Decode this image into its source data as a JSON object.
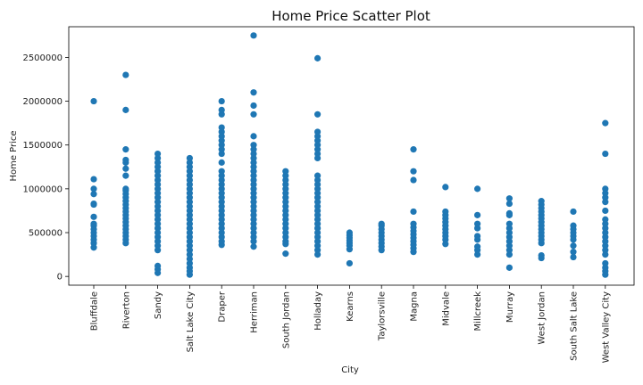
{
  "chart_data": {
    "type": "scatter",
    "title": "Home Price Scatter Plot",
    "xlabel": "City",
    "ylabel": "Home Price",
    "ylim": [
      -100000,
      2850000
    ],
    "yticks": [
      0,
      500000,
      1000000,
      1500000,
      2000000,
      2500000
    ],
    "ytick_labels": [
      "0",
      "500000",
      "1000000",
      "1500000",
      "2000000",
      "2500000"
    ],
    "grid": false,
    "legend": "none",
    "marker_color": "#1f77b4",
    "categories": [
      "Bluffdale",
      "Riverton",
      "Sandy",
      "Salt Lake City",
      "Draper",
      "Herriman",
      "South Jordan",
      "Holladay",
      "Kearns",
      "Taylorsville",
      "Magna",
      "Midvale",
      "Millcreek",
      "Murray",
      "West Jordan",
      "South Salt Lake",
      "West Valley City"
    ],
    "points": {
      "Bluffdale": [
        330000,
        380000,
        420000,
        460000,
        500000,
        540000,
        580000,
        600000,
        680000,
        820000,
        830000,
        940000,
        1000000,
        1110000,
        2000000
      ],
      "Riverton": [
        380000,
        420000,
        460000,
        500000,
        540000,
        580000,
        620000,
        660000,
        700000,
        740000,
        780000,
        820000,
        860000,
        900000,
        940000,
        980000,
        1000000,
        1150000,
        1230000,
        1300000,
        1330000,
        1450000,
        1900000,
        2300000
      ],
      "Sandy": [
        40000,
        80000,
        120000,
        300000,
        350000,
        400000,
        450000,
        500000,
        550000,
        600000,
        650000,
        700000,
        750000,
        800000,
        850000,
        900000,
        950000,
        1000000,
        1050000,
        1100000,
        1150000,
        1200000,
        1250000,
        1300000,
        1350000,
        1400000
      ],
      "Salt Lake City": [
        20000,
        60000,
        100000,
        150000,
        200000,
        250000,
        300000,
        350000,
        400000,
        450000,
        500000,
        550000,
        600000,
        650000,
        700000,
        750000,
        800000,
        850000,
        900000,
        950000,
        1000000,
        1050000,
        1100000,
        1150000,
        1200000,
        1250000,
        1300000,
        1350000
      ],
      "Draper": [
        360000,
        400000,
        450000,
        500000,
        550000,
        600000,
        650000,
        700000,
        750000,
        800000,
        850000,
        900000,
        950000,
        1000000,
        1050000,
        1100000,
        1150000,
        1200000,
        1300000,
        1400000,
        1450000,
        1500000,
        1550000,
        1600000,
        1650000,
        1700000,
        1850000,
        1900000,
        2000000
      ],
      "Herriman": [
        340000,
        400000,
        450000,
        500000,
        550000,
        600000,
        650000,
        700000,
        750000,
        800000,
        850000,
        900000,
        950000,
        1000000,
        1050000,
        1100000,
        1150000,
        1200000,
        1250000,
        1300000,
        1350000,
        1400000,
        1450000,
        1500000,
        1600000,
        1850000,
        1950000,
        2100000,
        2750000
      ],
      "South Jordan": [
        260000,
        370000,
        400000,
        450000,
        500000,
        550000,
        600000,
        650000,
        700000,
        750000,
        800000,
        850000,
        900000,
        950000,
        1000000,
        1050000,
        1100000,
        1150000,
        1200000
      ],
      "Holladay": [
        250000,
        300000,
        350000,
        400000,
        450000,
        500000,
        550000,
        600000,
        650000,
        700000,
        750000,
        800000,
        850000,
        900000,
        950000,
        1000000,
        1050000,
        1100000,
        1150000,
        1350000,
        1400000,
        1450000,
        1500000,
        1550000,
        1600000,
        1650000,
        1850000,
        2490000
      ],
      "Kearns": [
        150000,
        310000,
        350000,
        380000,
        410000,
        440000,
        470000,
        500000
      ],
      "Taylorsville": [
        300000,
        340000,
        380000,
        420000,
        460000,
        500000,
        540000,
        580000,
        600000
      ],
      "Magna": [
        280000,
        320000,
        360000,
        400000,
        440000,
        480000,
        520000,
        560000,
        600000,
        740000,
        1100000,
        1200000,
        1450000
      ],
      "Midvale": [
        370000,
        420000,
        460000,
        500000,
        540000,
        580000,
        620000,
        660000,
        700000,
        740000,
        1020000
      ],
      "Millcreek": [
        250000,
        300000,
        340000,
        420000,
        460000,
        550000,
        600000,
        700000,
        1000000
      ],
      "Murray": [
        100000,
        250000,
        300000,
        350000,
        400000,
        450000,
        500000,
        550000,
        600000,
        700000,
        720000,
        830000,
        890000
      ],
      "West Jordan": [
        210000,
        240000,
        380000,
        420000,
        460000,
        500000,
        540000,
        580000,
        620000,
        660000,
        700000,
        740000,
        780000,
        820000,
        860000
      ],
      "South Salt Lake": [
        220000,
        280000,
        350000,
        420000,
        460000,
        500000,
        540000,
        580000,
        740000
      ],
      "West Valley City": [
        20000,
        60000,
        100000,
        150000,
        250000,
        300000,
        350000,
        400000,
        450000,
        500000,
        550000,
        600000,
        650000,
        750000,
        850000,
        900000,
        950000,
        1000000,
        1400000,
        1750000
      ]
    }
  }
}
